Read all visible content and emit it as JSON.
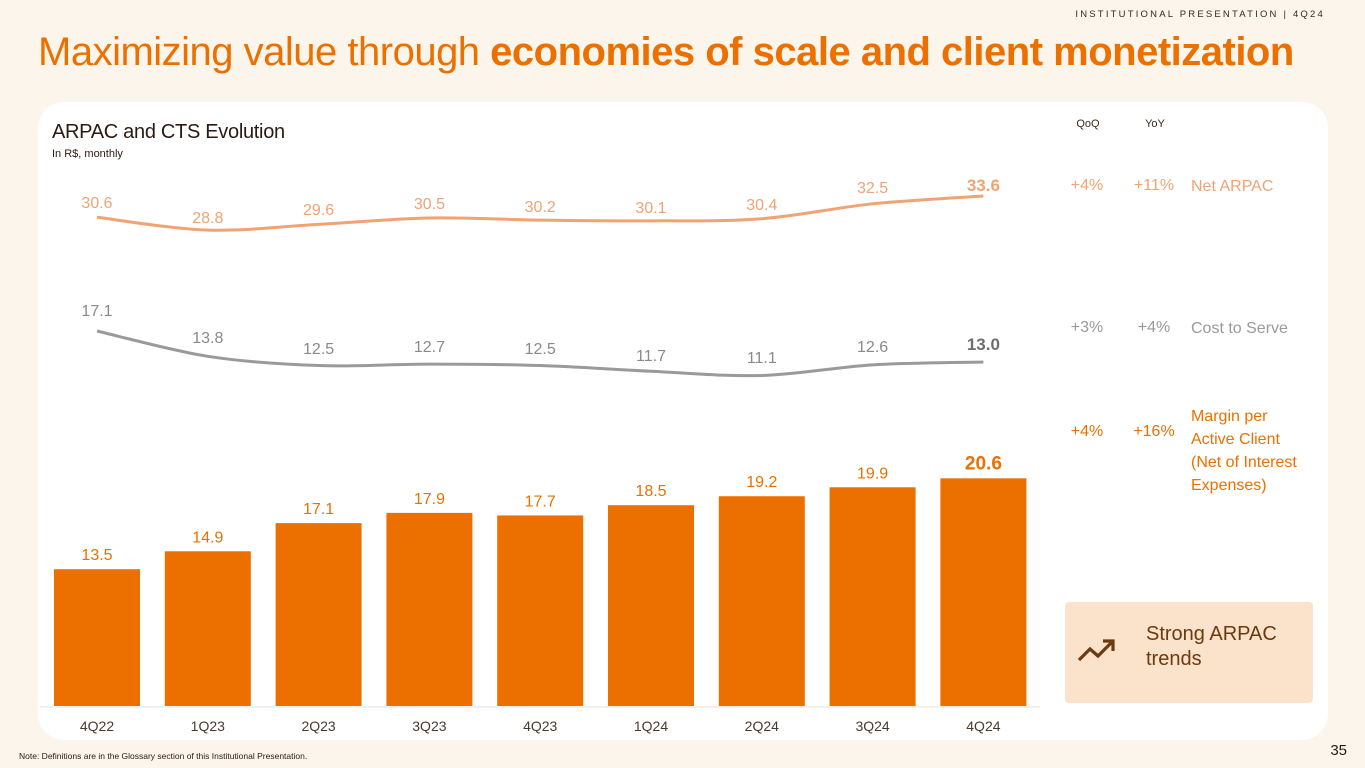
{
  "header": {
    "label": "INSTITUTIONAL PRESENTATION | 4Q24",
    "title_regular": "Maximizing value through ",
    "title_bold": "economies of scale and client monetization"
  },
  "chart_data": {
    "type": "bar",
    "title": "ARPAC and CTS Evolution",
    "subtitle": "In R$, monthly",
    "categories": [
      "4Q22",
      "1Q23",
      "2Q23",
      "3Q23",
      "4Q23",
      "1Q24",
      "2Q24",
      "3Q24",
      "4Q24"
    ],
    "series": [
      {
        "name": "Net ARPAC",
        "type": "line",
        "color": "#f0a373",
        "values": [
          30.6,
          28.8,
          29.6,
          30.5,
          30.2,
          30.1,
          30.4,
          32.5,
          33.6
        ]
      },
      {
        "name": "Cost to Serve",
        "type": "line",
        "color": "#9a9a9a",
        "values": [
          17.1,
          13.8,
          12.5,
          12.7,
          12.5,
          11.7,
          11.1,
          12.6,
          13.0
        ]
      },
      {
        "name": "Margin per Active Client (Net of Interest Expenses)",
        "type": "bar",
        "color": "#ec7000",
        "values": [
          13.5,
          14.9,
          17.1,
          17.9,
          17.7,
          18.5,
          19.2,
          19.9,
          20.6
        ]
      }
    ],
    "labels": {
      "arpac": [
        "30.6",
        "28.8",
        "29.6",
        "30.5",
        "30.2",
        "30.1",
        "30.4",
        "32.5",
        "33.6"
      ],
      "cts": [
        "17.1",
        "13.8",
        "12.5",
        "12.7",
        "12.5",
        "11.7",
        "11.1",
        "12.6",
        "13.0"
      ],
      "margin": [
        "13.5",
        "14.9",
        "17.1",
        "17.9",
        "17.7",
        "18.5",
        "19.2",
        "19.9",
        "20.6"
      ]
    }
  },
  "table": {
    "col_qoq": "QoQ",
    "col_yoy": "YoY",
    "rows": [
      {
        "qoq": "+4%",
        "yoy": "+11%",
        "name": "Net ARPAC"
      },
      {
        "qoq": "+3%",
        "yoy": "+4%",
        "name": "Cost to Serve"
      },
      {
        "qoq": "+4%",
        "yoy": "+16%",
        "name_lines": [
          "Margin per",
          "Active Client",
          "(Net of Interest",
          "Expenses)"
        ]
      }
    ]
  },
  "callout": {
    "icon": "trending-up-icon",
    "line1": "Strong ARPAC",
    "line2": "trends"
  },
  "footer": {
    "note": "Note: Definitions are in the Glossary section of this Institutional Presentation.",
    "page": "35"
  },
  "colors": {
    "accent": "#ec7000",
    "arpac_line": "#f0a373",
    "cts_line": "#9a9a9a",
    "callout_bg": "#fbe2cb"
  }
}
